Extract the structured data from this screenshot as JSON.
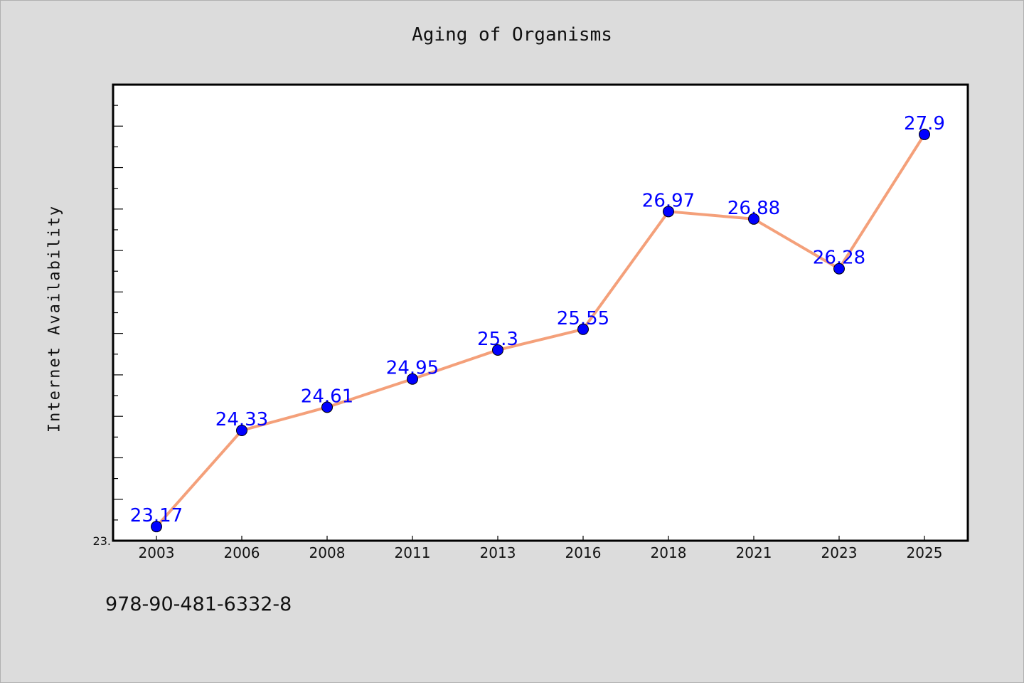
{
  "chart_data": {
    "type": "line",
    "title": "Aging of Organisms",
    "xlabel": "",
    "ylabel": "Internet Availability",
    "x": [
      "2003",
      "2006",
      "2008",
      "2011",
      "2013",
      "2016",
      "2018",
      "2021",
      "2023",
      "2025"
    ],
    "series": [
      {
        "values": [
          23.17,
          24.33,
          24.61,
          24.95,
          25.3,
          25.55,
          26.97,
          26.88,
          26.28,
          27.9
        ]
      }
    ],
    "data_labels": [
      "23.17",
      "24.33",
      "24.61",
      "24.95",
      "25.3",
      "25.55",
      "26.97",
      "26.88",
      "26.28",
      "27.9"
    ],
    "ylim": [
      23.0,
      28.5
    ],
    "y_tick_labels": [
      "23."
    ],
    "grid": false,
    "legend": "none",
    "colors": {
      "line": "#f4a07a",
      "marker": "#0000ff",
      "label": "#0000ff",
      "background": "#dcdcdc",
      "plot_area": "#ffffff"
    }
  },
  "footnote": "978-90-481-6332-8"
}
